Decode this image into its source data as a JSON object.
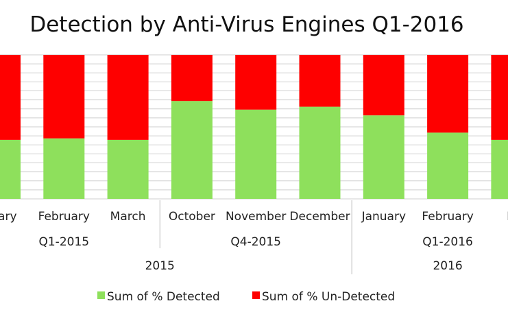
{
  "chart_data": {
    "type": "bar",
    "stacked": true,
    "title": "Detection by Anti-Virus Engines Q1-2016",
    "categories": [
      "January",
      "February",
      "March",
      "October",
      "November",
      "December",
      "January",
      "February",
      "March"
    ],
    "category_display": [
      "nuary",
      "February",
      "March",
      "October",
      "November",
      "December",
      "January",
      "February",
      "M"
    ],
    "quarter_groups": [
      {
        "label": "Q1-2015",
        "span": 3
      },
      {
        "label": "Q4-2015",
        "span": 3
      },
      {
        "label": "Q1-2016",
        "span": 3
      }
    ],
    "year_groups": [
      {
        "label": "2015",
        "span": 6
      },
      {
        "label": "2016",
        "span": 3
      }
    ],
    "series": [
      {
        "name": "Sum of % Detected",
        "color": "#8ee05c",
        "values": [
          41,
          42,
          41,
          68,
          62,
          64,
          58,
          46,
          41
        ]
      },
      {
        "name": "Sum of % Un-Detected",
        "color": "#fe0000",
        "values": [
          59,
          58,
          59,
          32,
          38,
          36,
          42,
          54,
          59
        ]
      }
    ],
    "ylim": [
      0,
      100
    ],
    "grid": true,
    "legend_position": "bottom"
  }
}
